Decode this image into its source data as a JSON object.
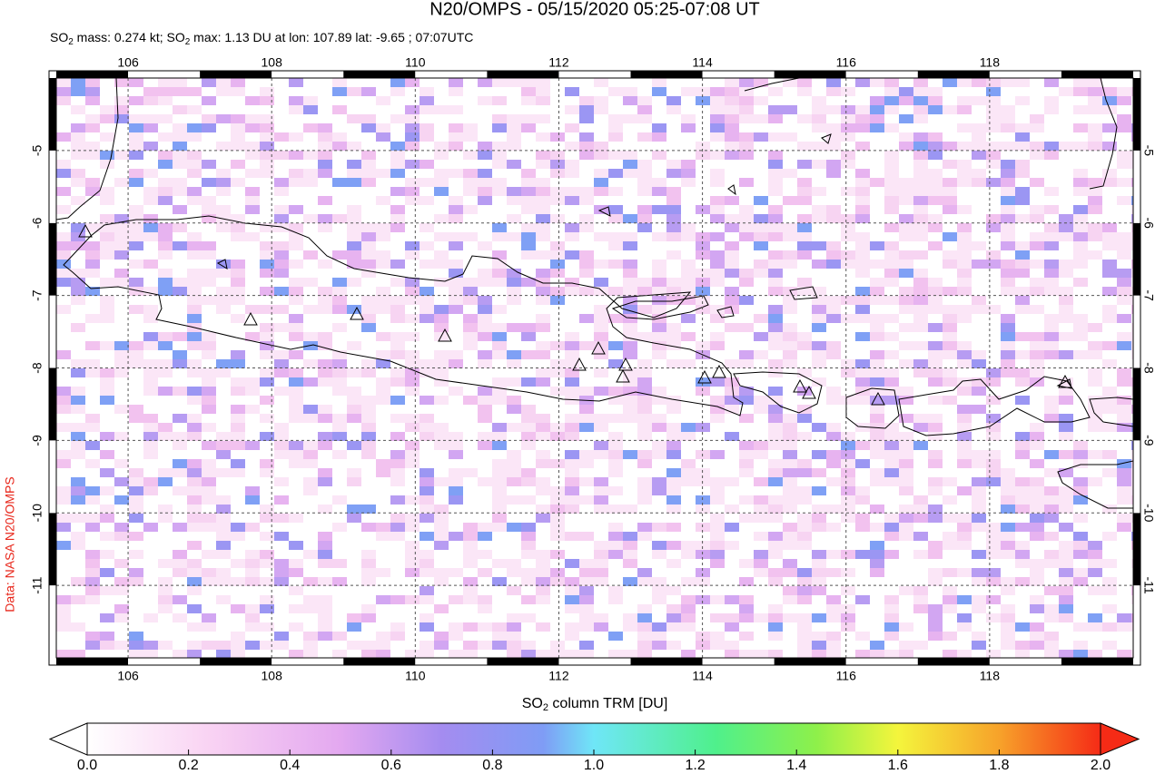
{
  "header": {
    "title": "N20/OMPS - 05/15/2020 05:25-07:08 UT",
    "subtitle": [
      "SO",
      "2",
      " mass: 0.274 kt; SO",
      "2",
      " max: 1.13 DU at lon: 107.89 lat: -9.65 ; 07:07UTC"
    ]
  },
  "map": {
    "lonlim": [
      105,
      120
    ],
    "latlim": [
      -12,
      -4
    ],
    "lonticks": [
      106,
      108,
      110,
      112,
      114,
      116,
      118
    ],
    "latticks": [
      -5,
      -6,
      -7,
      -8,
      -9,
      -10,
      -11
    ]
  },
  "colorbar": {
    "label": [
      "SO",
      "2",
      " column TRM [DU]"
    ],
    "lim": [
      0,
      2
    ],
    "ticks": [
      {
        "value": 0,
        "label": "0.0"
      },
      {
        "value": 0.2,
        "label": "0.2"
      },
      {
        "value": 0.4,
        "label": "0.4"
      },
      {
        "value": 0.6,
        "label": "0.6"
      },
      {
        "value": 0.8,
        "label": "0.8"
      },
      {
        "value": 1,
        "label": "1.0"
      },
      {
        "value": 1.2,
        "label": "1.2"
      },
      {
        "value": 1.4,
        "label": "1.4"
      },
      {
        "value": 1.6,
        "label": "1.6"
      },
      {
        "value": 1.8,
        "label": "1.8"
      },
      {
        "value": 2,
        "label": "2.0"
      }
    ]
  },
  "credit": "Data: NASA N20/OMPS"
}
